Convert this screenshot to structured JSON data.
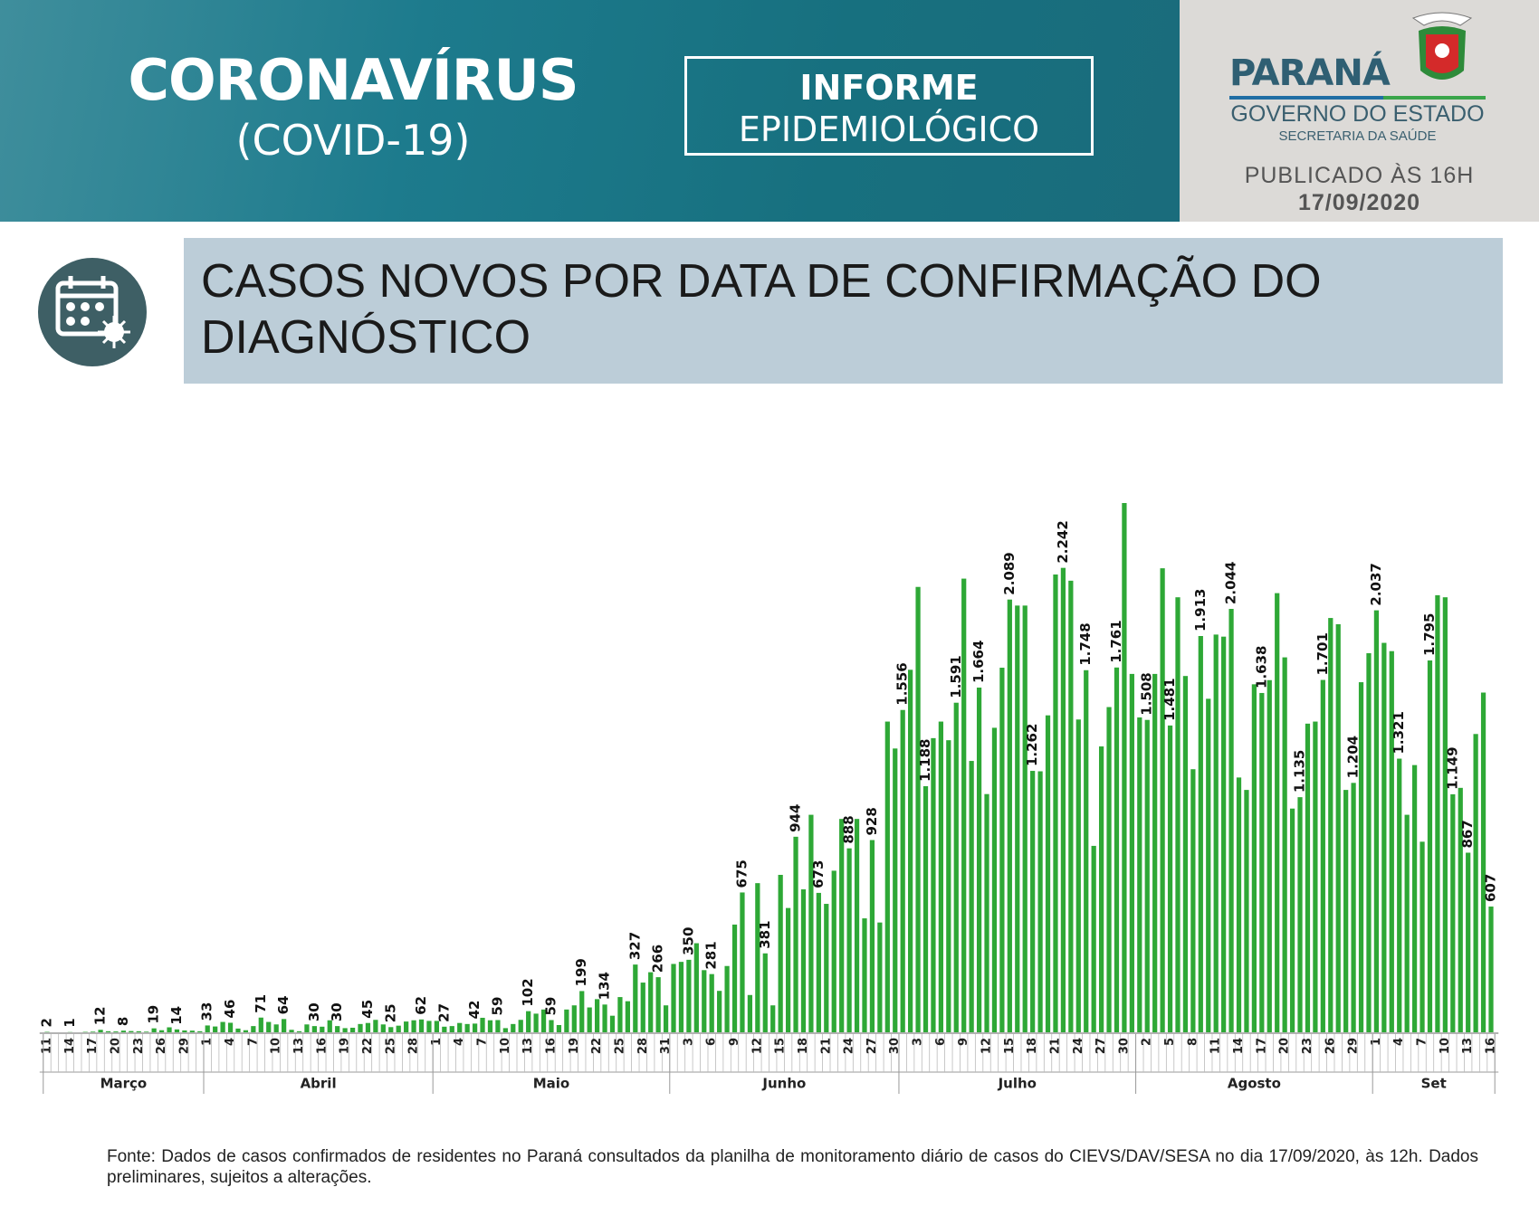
{
  "header": {
    "title": "CORONAVÍRUS",
    "subtitle": "(COVID-19)",
    "badge_line1": "INFORME",
    "badge_line2": "EPIDEMIOLÓGICO",
    "state": "PARANÁ",
    "government": "GOVERNO DO ESTADO",
    "department": "SECRETARIA DA SAÚDE",
    "published": "PUBLICADO ÀS 16H",
    "date": "17/09/2020"
  },
  "chart_data": {
    "type": "bar",
    "title": "CASOS NOVOS POR DATA DE CONFIRMAÇÃO DO DIAGNÓSTICO",
    "color": "#2ea836",
    "categories": [
      "11",
      null,
      null,
      "14",
      null,
      null,
      "17",
      null,
      null,
      "20",
      null,
      null,
      "23",
      null,
      null,
      "26",
      null,
      null,
      "29",
      null,
      null,
      "1",
      null,
      null,
      "4",
      null,
      null,
      "7",
      null,
      null,
      "10",
      null,
      null,
      "13",
      null,
      null,
      "16",
      null,
      null,
      "19",
      null,
      null,
      "22",
      null,
      null,
      "25",
      null,
      null,
      "28",
      null,
      null,
      "1",
      null,
      null,
      "4",
      null,
      null,
      "7",
      null,
      null,
      "10",
      null,
      null,
      "13",
      null,
      null,
      "16",
      null,
      null,
      "19",
      null,
      null,
      "22",
      null,
      null,
      "25",
      null,
      null,
      "28",
      null,
      null,
      "31",
      null,
      null,
      "3",
      null,
      null,
      "6",
      null,
      null,
      "9",
      null,
      null,
      "12",
      null,
      null,
      "15",
      null,
      null,
      "18",
      null,
      null,
      "21",
      null,
      null,
      "24",
      null,
      null,
      "27",
      null,
      null,
      "30",
      null,
      null,
      "3",
      null,
      null,
      "6",
      null,
      null,
      "9",
      null,
      null,
      "12",
      null,
      null,
      "15",
      null,
      null,
      "18",
      null,
      null,
      "21",
      null,
      null,
      "24",
      null,
      null,
      "27",
      null,
      null,
      "30",
      null,
      null,
      "2",
      null,
      null,
      "5",
      null,
      null,
      "8",
      null,
      null,
      "11",
      null,
      null,
      "14",
      null,
      null,
      "17",
      null,
      null,
      "20",
      null,
      null,
      "23",
      null,
      null,
      "26",
      null,
      null,
      "29",
      null,
      null,
      "1",
      null,
      null,
      "4",
      null,
      null,
      "7",
      null,
      null,
      "10",
      null,
      null,
      "13",
      null,
      null,
      "16"
    ],
    "x_groups": [
      "Março",
      "Abril",
      "Maio",
      "Junho",
      "Julho",
      "Agosto",
      "Set"
    ],
    "values": [
      2,
      0,
      0,
      1,
      0,
      2,
      3,
      12,
      5,
      4,
      8,
      6,
      5,
      3,
      19,
      10,
      24,
      14,
      9,
      8,
      5,
      33,
      28,
      50,
      46,
      18,
      10,
      30,
      71,
      50,
      38,
      64,
      12,
      5,
      38,
      30,
      27,
      58,
      30,
      20,
      22,
      40,
      45,
      60,
      38,
      25,
      32,
      52,
      58,
      62,
      55,
      55,
      27,
      30,
      45,
      40,
      42,
      70,
      58,
      59,
      20,
      40,
      60,
      102,
      90,
      110,
      59,
      35,
      110,
      130,
      199,
      120,
      160,
      134,
      80,
      170,
      150,
      327,
      240,
      290,
      266,
      130,
      330,
      340,
      350,
      430,
      300,
      281,
      200,
      320,
      520,
      675,
      180,
      720,
      381,
      130,
      760,
      600,
      944,
      690,
      1050,
      673,
      620,
      780,
      1030,
      888,
      1030,
      550,
      928,
      530,
      1500,
      1370,
      1556,
      1750,
      2150,
      1188,
      1420,
      1500,
      1410,
      1591,
      2190,
      1310,
      1664,
      1150,
      1470,
      1760,
      2089,
      2060,
      2060,
      1262,
      1260,
      1530,
      2210,
      2242,
      2180,
      1510,
      1748,
      900,
      1380,
      1570,
      1761,
      2555,
      1730,
      1520,
      1508,
      1730,
      2240,
      1481,
      2100,
      1720,
      1270,
      1913,
      1610,
      1920,
      1910,
      2044,
      1230,
      1170,
      1680,
      1638,
      1700,
      2120,
      1810,
      1080,
      1135,
      1490,
      1500,
      1701,
      2000,
      1970,
      1170,
      1204,
      1690,
      1830,
      2037,
      1880,
      1840,
      1321,
      1050,
      1290,
      920,
      1795,
      2110,
      2100,
      1149,
      1180,
      867,
      1440,
      1640,
      607
    ],
    "value_labels": [
      "2",
      null,
      null,
      "1",
      null,
      null,
      null,
      "12",
      null,
      null,
      "8",
      null,
      null,
      null,
      "19",
      null,
      null,
      "14",
      null,
      null,
      null,
      "33",
      null,
      null,
      "46",
      null,
      null,
      null,
      "71",
      null,
      null,
      "64",
      null,
      null,
      null,
      "30",
      null,
      null,
      "30",
      null,
      null,
      null,
      "45",
      null,
      null,
      "25",
      null,
      null,
      null,
      "62",
      null,
      null,
      "27",
      null,
      null,
      null,
      "42",
      null,
      null,
      "59",
      null,
      null,
      null,
      "102",
      null,
      null,
      "59",
      null,
      null,
      null,
      "199",
      null,
      null,
      "134",
      null,
      null,
      null,
      "327",
      null,
      null,
      "266",
      null,
      null,
      null,
      "350",
      null,
      null,
      "281",
      null,
      null,
      null,
      "675",
      null,
      null,
      "381",
      null,
      null,
      null,
      "944",
      null,
      null,
      "673",
      null,
      null,
      null,
      "888",
      null,
      null,
      "928",
      null,
      null,
      null,
      "1.556",
      null,
      null,
      "1.188",
      null,
      null,
      null,
      "1.591",
      null,
      null,
      "1.664",
      null,
      null,
      null,
      "2.089",
      null,
      null,
      "1.262",
      null,
      null,
      null,
      "2.242",
      null,
      null,
      "1.748",
      null,
      null,
      null,
      "1.761",
      null,
      null,
      null,
      "1.508",
      null,
      null,
      "1.481",
      null,
      null,
      null,
      "1.913",
      null,
      null,
      null,
      "2.044",
      null,
      null,
      null,
      "1.638",
      null,
      null,
      null,
      null,
      "1.135",
      null,
      null,
      "1.701",
      null,
      null,
      null,
      "1.204",
      null,
      null,
      "2.037",
      null,
      null,
      "1.321",
      null,
      null,
      null,
      "1.795",
      null,
      null,
      "1.149",
      null,
      "867",
      null,
      null,
      "607"
    ]
  },
  "footer": {
    "source": "Fonte: Dados de casos confirmados de residentes no Paraná consultados da planilha de monitoramento diário de casos do CIEVS/DAV/SESA no dia 17/09/2020, às 12h. Dados preliminares, sujeitos a alterações."
  }
}
